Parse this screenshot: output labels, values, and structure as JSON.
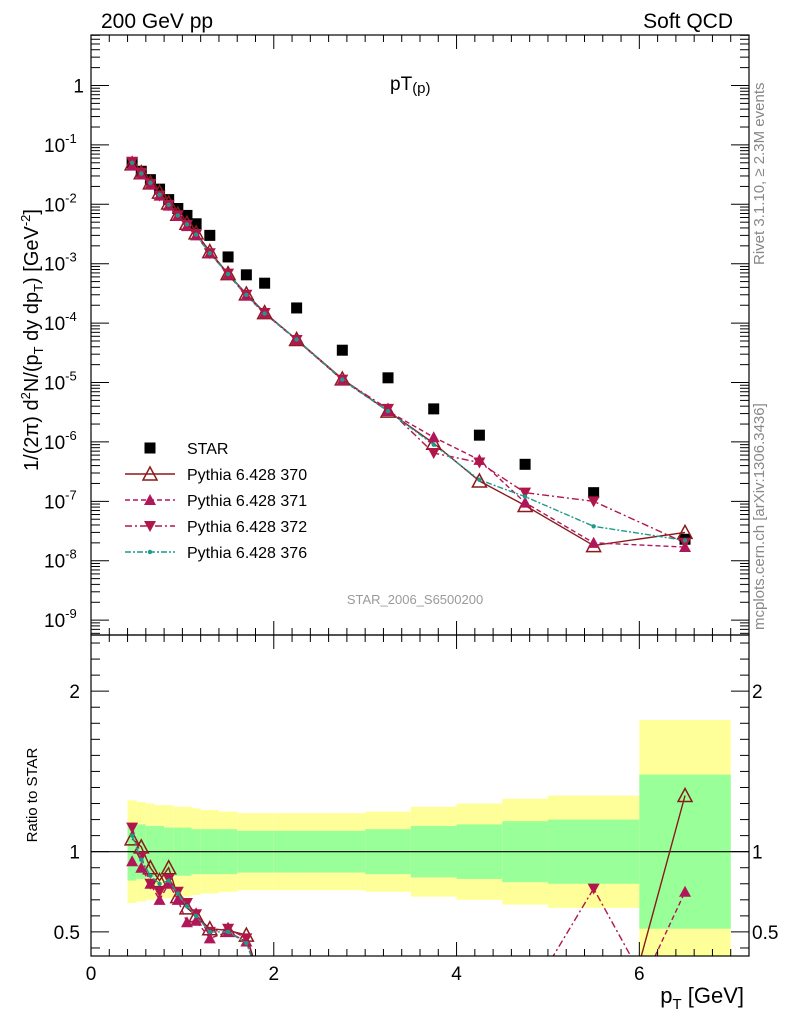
{
  "header": {
    "left": "200 GeV pp",
    "right": "Soft QCD"
  },
  "side_labels": {
    "rivet": "Rivet 3.1.10, ≥ 2.3M events",
    "mcplots": "mcplots.cern.ch [arXiv:1306.3436]"
  },
  "chart_data": [
    {
      "type": "scatter",
      "title": "pT(p)",
      "title_main": "pT",
      "title_sub": "(p)",
      "watermark": "STAR_2006_S6500200",
      "ylabel": "1/(2π) d²N/(p_T dy dp_T) [GeV⁻²]",
      "ylabel_parts": {
        "a": "1/(2π) d",
        "b": "2",
        "c": "N/(p",
        "d": "T",
        "e": " dy dp",
        "f": "T",
        "g": ") [GeV",
        "h": "-2",
        "i": "]"
      },
      "xlim": [
        0,
        7.2
      ],
      "ylim_log": [
        -9.25,
        0.85
      ],
      "log_y": true,
      "y_ticks": [
        {
          "v": 1,
          "base": "1",
          "exp": ""
        },
        {
          "v": 0.1,
          "base": "10",
          "exp": "-1"
        },
        {
          "v": 0.01,
          "base": "10",
          "exp": "-2"
        },
        {
          "v": 0.001,
          "base": "10",
          "exp": "-3"
        },
        {
          "v": 0.0001,
          "base": "10",
          "exp": "-4"
        },
        {
          "v": 1e-05,
          "base": "10",
          "exp": "-5"
        },
        {
          "v": 1e-06,
          "base": "10",
          "exp": "-6"
        },
        {
          "v": 1e-07,
          "base": "10",
          "exp": "-7"
        },
        {
          "v": 1e-08,
          "base": "10",
          "exp": "-8"
        },
        {
          "v": 1e-09,
          "base": "10",
          "exp": "-9"
        }
      ],
      "legend_position": "bottom-left",
      "series": [
        {
          "name": "STAR",
          "marker": "square",
          "color": "#000000",
          "x": [
            0.45,
            0.55,
            0.65,
            0.75,
            0.85,
            0.95,
            1.05,
            1.15,
            1.3,
            1.5,
            1.7,
            1.9,
            2.25,
            2.75,
            3.25,
            3.75,
            4.25,
            4.75,
            5.5,
            6.5
          ],
          "y": [
            0.05,
            0.036,
            0.026,
            0.018,
            0.012,
            0.0085,
            0.0065,
            0.0047,
            0.003,
            0.0013,
            0.00065,
            0.00047,
            0.00018,
            3.5e-05,
            1.2e-05,
            3.6e-06,
            1.3e-06,
            4.2e-07,
            1.4e-07,
            2.3e-08
          ]
        },
        {
          "name": "Pythia 6.428 370",
          "marker": "triangle-open",
          "color": "#8b1a1a",
          "dash": "",
          "x": [
            0.45,
            0.55,
            0.65,
            0.75,
            0.85,
            0.95,
            1.05,
            1.15,
            1.3,
            1.5,
            1.7,
            1.9,
            2.25,
            2.75,
            3.25,
            3.75,
            4.25,
            4.75,
            5.5,
            6.5
          ],
          "y": [
            0.048,
            0.034,
            0.023,
            0.016,
            0.0105,
            0.0068,
            0.0048,
            0.0033,
            0.0016,
            0.00068,
            0.00031,
            0.00015,
            5.3e-05,
            1.15e-05,
            3.3e-06,
            9.5e-07,
            2.2e-07,
            8.5e-08,
            1.8e-08,
            3e-08
          ]
        },
        {
          "name": "Pythia 6.428 371",
          "marker": "triangle",
          "color": "#b0165a",
          "dash": "5,3",
          "x": [
            0.45,
            0.55,
            0.65,
            0.75,
            0.85,
            0.95,
            1.05,
            1.15,
            1.3,
            1.5,
            1.7,
            1.9,
            2.25,
            2.75,
            3.25,
            3.75,
            4.25,
            4.75,
            5.5,
            6.5
          ],
          "y": [
            0.045,
            0.032,
            0.022,
            0.014,
            0.0095,
            0.0064,
            0.0043,
            0.003,
            0.0015,
            0.00066,
            0.00029,
            0.000145,
            5.2e-05,
            1.1e-05,
            3.3e-06,
            1.2e-06,
            5e-07,
            9.5e-08,
            2e-08,
            1.7e-08
          ]
        },
        {
          "name": "Pythia 6.428 372",
          "marker": "triangle-down",
          "color": "#b0164a",
          "dash": "7,3,2,3",
          "x": [
            0.45,
            0.55,
            0.65,
            0.75,
            0.85,
            0.95,
            1.05,
            1.15,
            1.3,
            1.5,
            1.7,
            1.9,
            2.25,
            2.75,
            3.25,
            3.75,
            4.25,
            4.75,
            5.5,
            6.5
          ],
          "y": [
            0.052,
            0.034,
            0.022,
            0.014,
            0.0098,
            0.0065,
            0.0045,
            0.0031,
            0.0015,
            0.00068,
            0.0003,
            0.000148,
            5.2e-05,
            1.12e-05,
            3.6e-06,
            6.5e-07,
            4.5e-07,
            1.4e-07,
            1e-07,
            2e-08
          ]
        },
        {
          "name": "Pythia 6.428 376",
          "marker": "dot",
          "color": "#1f9a8a",
          "dash": "6,2,2,2",
          "x": [
            0.45,
            0.55,
            0.65,
            0.75,
            0.85,
            0.95,
            1.05,
            1.15,
            1.3,
            1.5,
            1.7,
            1.9,
            2.25,
            2.75,
            3.25,
            3.75,
            4.25,
            4.75,
            5.5,
            6.5
          ],
          "y": [
            0.05,
            0.033,
            0.023,
            0.0145,
            0.0098,
            0.0065,
            0.0046,
            0.0031,
            0.0015,
            0.00067,
            0.0003,
            0.000145,
            5.3e-05,
            1.12e-05,
            3.3e-06,
            9e-07,
            2.3e-07,
            1.2e-07,
            3.8e-08,
            2.2e-08
          ]
        }
      ]
    },
    {
      "type": "line",
      "ylabel": "Ratio to STAR",
      "xlabel": "p_T [GeV]",
      "xlabel_main": "p",
      "xlabel_sub": "T",
      "xlabel_unit": " [GeV]",
      "xlim": [
        0,
        7.2
      ],
      "ylim": [
        0.35,
        2.35
      ],
      "x_ticks": [
        "0",
        "2",
        "4",
        "6"
      ],
      "y_ticks": [
        "0.5",
        "1",
        "2"
      ],
      "bands": {
        "x_edges": [
          0.4,
          0.5,
          0.6,
          0.7,
          0.8,
          0.9,
          1.0,
          1.1,
          1.2,
          1.4,
          1.6,
          1.8,
          2.0,
          2.5,
          3.0,
          3.5,
          4.0,
          4.5,
          5.0,
          6.0,
          7.0
        ],
        "yellow_half": [
          0.32,
          0.31,
          0.3,
          0.29,
          0.29,
          0.28,
          0.28,
          0.27,
          0.26,
          0.25,
          0.24,
          0.24,
          0.24,
          0.24,
          0.25,
          0.28,
          0.3,
          0.33,
          0.35,
          0.82
        ],
        "green_half": [
          0.18,
          0.17,
          0.16,
          0.16,
          0.15,
          0.15,
          0.15,
          0.14,
          0.14,
          0.14,
          0.13,
          0.13,
          0.13,
          0.13,
          0.14,
          0.16,
          0.17,
          0.19,
          0.2,
          0.48
        ]
      },
      "series": [
        {
          "name": "Pythia 6.428 370",
          "color": "#8b1a1a",
          "marker": "triangle-open",
          "dash": "",
          "x": [
            0.45,
            0.55,
            0.65,
            0.75,
            0.85,
            0.95,
            1.05,
            1.15,
            1.3,
            1.5,
            1.7,
            1.85,
            5.95,
            6.5
          ],
          "y": [
            1.08,
            1.03,
            0.9,
            0.82,
            0.9,
            0.72,
            0.65,
            0.6,
            0.52,
            0.51,
            0.48,
            0.2,
            0.2,
            1.35
          ]
        },
        {
          "name": "Pythia 6.428 371",
          "color": "#b0165a",
          "marker": "triangle",
          "dash": "5,3",
          "x": [
            0.45,
            0.55,
            0.65,
            0.75,
            0.85,
            0.95,
            1.05,
            1.15,
            1.3,
            1.5,
            1.7,
            1.85,
            6.05,
            6.5
          ],
          "y": [
            0.94,
            0.9,
            0.8,
            0.7,
            0.8,
            0.7,
            0.56,
            0.57,
            0.46,
            0.5,
            0.44,
            0.2,
            0.2,
            0.75
          ]
        },
        {
          "name": "Pythia 6.428 372",
          "color": "#b0164a",
          "marker": "triangle-down",
          "dash": "7,3,2,3",
          "x": [
            0.45,
            0.55,
            0.65,
            0.75,
            0.85,
            0.95,
            1.05,
            1.15,
            1.3,
            1.5,
            1.7,
            1.85,
            4.9,
            5.5,
            6.05
          ],
          "y": [
            1.15,
            0.97,
            0.8,
            0.75,
            0.83,
            0.75,
            0.68,
            0.61,
            0.5,
            0.52,
            0.46,
            0.2,
            0.2,
            0.77,
            0.2
          ]
        },
        {
          "name": "Pythia 6.428 376",
          "color": "#1f9a8a",
          "marker": "dot",
          "dash": "6,2,2,2",
          "x": [
            0.45,
            0.55,
            0.65,
            0.75,
            0.85,
            0.95,
            1.05,
            1.15,
            1.3,
            1.5,
            1.7,
            1.85
          ],
          "y": [
            1.1,
            0.95,
            0.85,
            0.8,
            0.82,
            0.74,
            0.66,
            0.6,
            0.5,
            0.5,
            0.43,
            0.2
          ]
        }
      ]
    }
  ]
}
